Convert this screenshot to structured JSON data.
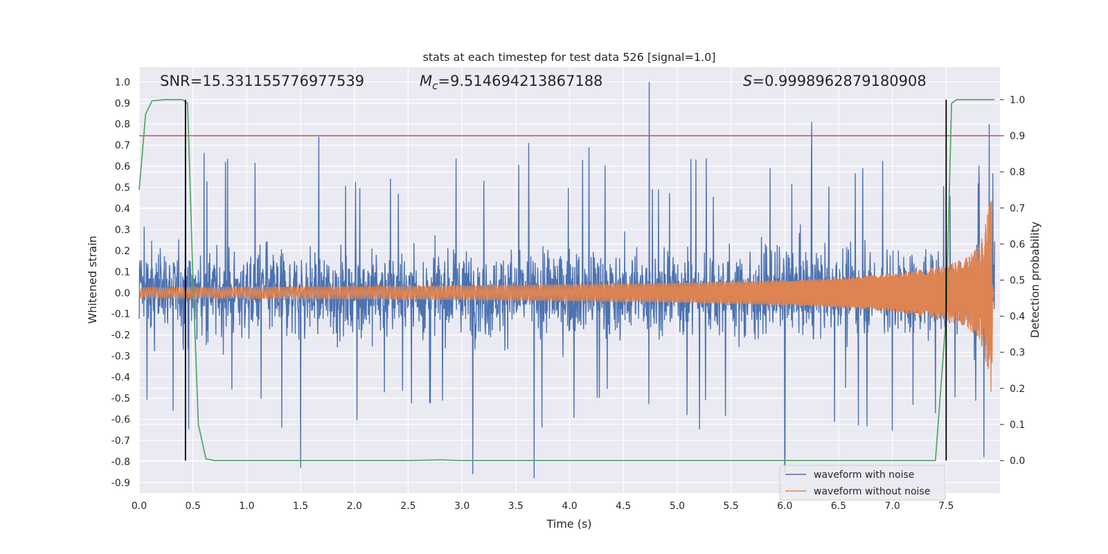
{
  "chart_data": {
    "type": "line",
    "title": "stats at each timestep for test data 526 [signal=1.0]",
    "xlabel": "Time (s)",
    "ylabel": "Whitened strain",
    "y2label": "Detection probability",
    "xlim": [
      0.0,
      8.0
    ],
    "ylim": [
      -0.95,
      1.07
    ],
    "y2lim": [
      -0.09,
      1.09
    ],
    "grid": true,
    "legend_position": "lower right",
    "x_ticks": [
      "0.0",
      "0.5",
      "1.0",
      "1.5",
      "2.0",
      "2.5",
      "3.0",
      "3.5",
      "4.0",
      "4.5",
      "5.0",
      "5.5",
      "6.0",
      "6.5",
      "7.0",
      "7.5"
    ],
    "y_ticks": [
      "1.0",
      "0.9",
      "0.8",
      "0.7",
      "0.6",
      "0.5",
      "0.4",
      "0.3",
      "0.2",
      "0.1",
      "0.0",
      "-0.1",
      "-0.2",
      "-0.3",
      "-0.4",
      "-0.5",
      "-0.6",
      "-0.7",
      "-0.8",
      "-0.9"
    ],
    "y2_ticks": [
      "1.0",
      "0.9",
      "0.8",
      "0.7",
      "0.6",
      "0.5",
      "0.4",
      "0.3",
      "0.2",
      "0.1",
      "0.0"
    ],
    "annotations": {
      "snr": "SNR=15.331155776977539",
      "mc_symbol": "M",
      "mc_subscript": "c",
      "mc_value": "=9.514694213867188",
      "s_symbol": "S",
      "s_value": "=0.9998962879180908"
    },
    "series": [
      {
        "name": "waveform with noise",
        "color": "#4c72b0",
        "axis": "left",
        "description_values": {
          "noise_range_typical": [
            -0.5,
            0.5
          ],
          "max": 1.0,
          "min": -0.88
        },
        "peaks": [
          [
            4.74,
            1.0
          ],
          [
            6.25,
            0.81
          ],
          [
            7.9,
            0.8
          ],
          [
            0.43,
            0.68
          ],
          [
            1.67,
            0.74
          ],
          [
            3.62,
            0.71
          ],
          [
            4.18,
            0.69
          ],
          [
            3.67,
            -0.88
          ],
          [
            3.1,
            -0.86
          ],
          [
            1.5,
            -0.83
          ],
          [
            6.0,
            -0.85
          ],
          [
            7.85,
            -0.78
          ]
        ]
      },
      {
        "name": "waveform without noise",
        "color": "#dd8452",
        "axis": "left",
        "envelope": [
          [
            0.0,
            0.025
          ],
          [
            1.0,
            0.027
          ],
          [
            2.0,
            0.03
          ],
          [
            3.0,
            0.034
          ],
          [
            4.0,
            0.04
          ],
          [
            5.0,
            0.047
          ],
          [
            6.0,
            0.06
          ],
          [
            6.5,
            0.07
          ],
          [
            7.0,
            0.09
          ],
          [
            7.5,
            0.13
          ],
          [
            7.7,
            0.17
          ],
          [
            7.8,
            0.22
          ],
          [
            7.85,
            0.28
          ],
          [
            7.9,
            0.42
          ],
          [
            7.92,
            0.5
          ],
          [
            7.94,
            0.0
          ],
          [
            8.0,
            0.0
          ]
        ]
      },
      {
        "color": "#55a868",
        "axis": "right",
        "points": [
          [
            0.0,
            0.75
          ],
          [
            0.06,
            0.96
          ],
          [
            0.12,
            0.997
          ],
          [
            0.25,
            1.0
          ],
          [
            0.4,
            1.0
          ],
          [
            0.45,
            0.99
          ],
          [
            0.5,
            0.5
          ],
          [
            0.55,
            0.1
          ],
          [
            0.62,
            0.005
          ],
          [
            0.7,
            0.0
          ],
          [
            1.5,
            0.0
          ],
          [
            2.5,
            0.0
          ],
          [
            2.8,
            0.002
          ],
          [
            3.0,
            0.0
          ],
          [
            7.4,
            0.0
          ],
          [
            7.5,
            0.4
          ],
          [
            7.55,
            0.99
          ],
          [
            7.6,
            1.0
          ],
          [
            7.95,
            1.0
          ]
        ]
      },
      {
        "color": "#c44e52",
        "axis": "right",
        "constant": 0.9
      }
    ],
    "vertical_markers": [
      0.43,
      7.5
    ]
  }
}
